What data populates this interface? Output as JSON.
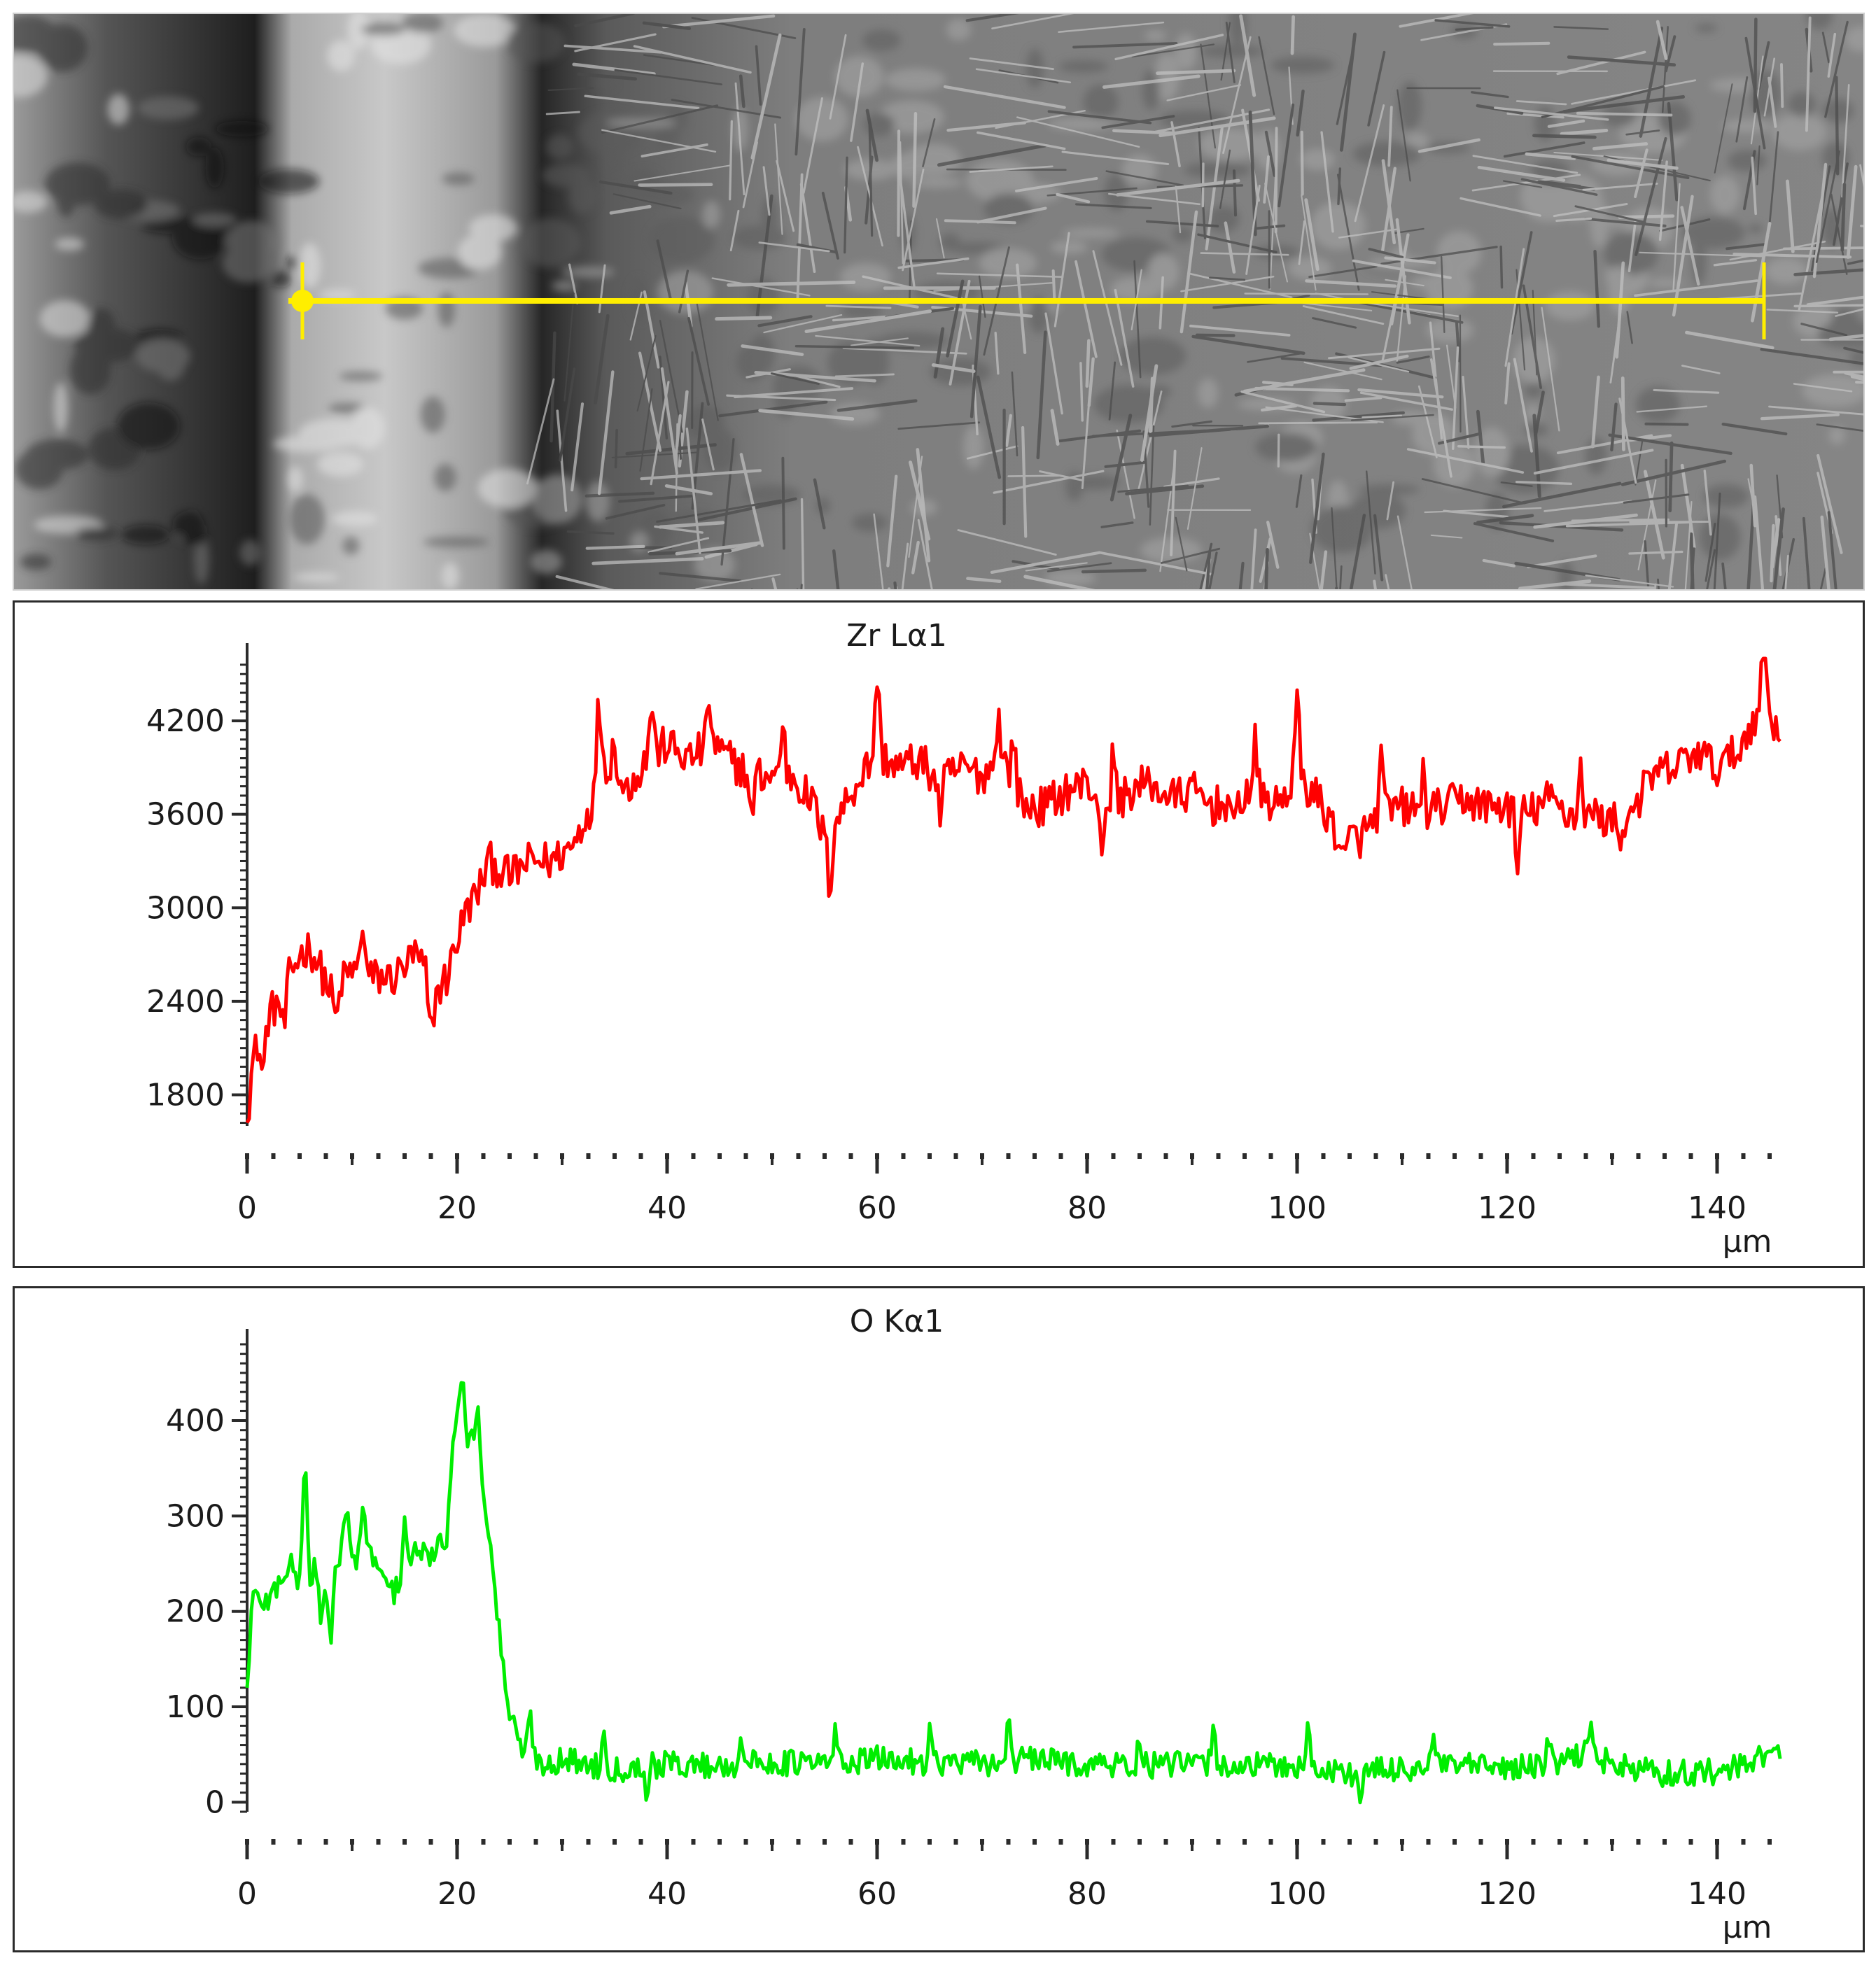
{
  "image": {
    "description_label": "SEM cross-section micrograph with EDS line scan",
    "line_scan_color": "#ffee00"
  },
  "chart_data": [
    {
      "type": "line",
      "title": "Zr Lα1",
      "xlabel": "μm",
      "ylabel": "",
      "color": "#ff0000",
      "xlim": [
        0,
        146
      ],
      "ylim": [
        1600,
        4600
      ],
      "xticks": [
        0,
        20,
        40,
        60,
        80,
        100,
        120,
        140
      ],
      "yticks": [
        1800,
        2400,
        3000,
        3600,
        4200
      ],
      "anchors": [
        [
          0,
          1620
        ],
        [
          0.5,
          2000
        ],
        [
          1.5,
          2250
        ],
        [
          3,
          2400
        ],
        [
          5,
          2700
        ],
        [
          6,
          2750
        ],
        [
          8,
          2450
        ],
        [
          10,
          2600
        ],
        [
          12,
          2550
        ],
        [
          14,
          2550
        ],
        [
          16,
          2700
        ],
        [
          18,
          2450
        ],
        [
          19,
          2550
        ],
        [
          20,
          2800
        ],
        [
          21,
          3000
        ],
        [
          22,
          3100
        ],
        [
          23,
          3300
        ],
        [
          25,
          3200
        ],
        [
          27,
          3300
        ],
        [
          29,
          3300
        ],
        [
          31,
          3400
        ],
        [
          33,
          3700
        ],
        [
          34,
          3950
        ],
        [
          36,
          3750
        ],
        [
          38,
          3950
        ],
        [
          40,
          4050
        ],
        [
          42,
          3950
        ],
        [
          44,
          4050
        ],
        [
          46,
          3950
        ],
        [
          48,
          3850
        ],
        [
          50,
          3850
        ],
        [
          52,
          3850
        ],
        [
          54,
          3650
        ],
        [
          55,
          3450
        ],
        [
          56,
          3550
        ],
        [
          58,
          3800
        ],
        [
          60,
          4000
        ],
        [
          62,
          3900
        ],
        [
          64,
          3950
        ],
        [
          66,
          3800
        ],
        [
          68,
          3900
        ],
        [
          70,
          3850
        ],
        [
          72,
          3950
        ],
        [
          74,
          3650
        ],
        [
          76,
          3650
        ],
        [
          78,
          3750
        ],
        [
          80,
          3800
        ],
        [
          82,
          3600
        ],
        [
          84,
          3750
        ],
        [
          86,
          3800
        ],
        [
          88,
          3700
        ],
        [
          90,
          3750
        ],
        [
          92,
          3650
        ],
        [
          94,
          3700
        ],
        [
          96,
          3750
        ],
        [
          98,
          3650
        ],
        [
          100,
          3850
        ],
        [
          102,
          3700
        ],
        [
          104,
          3450
        ],
        [
          106,
          3450
        ],
        [
          108,
          3600
        ],
        [
          110,
          3650
        ],
        [
          112,
          3600
        ],
        [
          114,
          3650
        ],
        [
          116,
          3700
        ],
        [
          118,
          3650
        ],
        [
          120,
          3650
        ],
        [
          122,
          3600
        ],
        [
          124,
          3700
        ],
        [
          126,
          3600
        ],
        [
          128,
          3600
        ],
        [
          130,
          3550
        ],
        [
          132,
          3650
        ],
        [
          134,
          3850
        ],
        [
          136,
          3900
        ],
        [
          138,
          4000
        ],
        [
          140,
          3900
        ],
        [
          142,
          4000
        ],
        [
          144,
          4300
        ],
        [
          146,
          4150
        ]
      ],
      "noise": 130,
      "spikes": [
        [
          1.5,
          -350
        ],
        [
          3.5,
          -300
        ],
        [
          8.5,
          -250
        ],
        [
          11,
          350
        ],
        [
          17.5,
          -380
        ],
        [
          33.5,
          550
        ],
        [
          35,
          250
        ],
        [
          38.5,
          380
        ],
        [
          44,
          300
        ],
        [
          48,
          -300
        ],
        [
          51,
          350
        ],
        [
          55.5,
          -400
        ],
        [
          60,
          500
        ],
        [
          66,
          -200
        ],
        [
          71.5,
          350
        ],
        [
          73,
          300
        ],
        [
          81.5,
          -300
        ],
        [
          82.5,
          400
        ],
        [
          94,
          -250
        ],
        [
          96,
          300
        ],
        [
          100,
          500
        ],
        [
          104.5,
          -200
        ],
        [
          108,
          350
        ],
        [
          112,
          250
        ],
        [
          121,
          -400
        ],
        [
          127,
          300
        ],
        [
          131,
          -200
        ],
        [
          144.5,
          500
        ]
      ]
    },
    {
      "type": "line",
      "title": "O Kα1",
      "xlabel": "μm",
      "ylabel": "",
      "color": "#00ee00",
      "xlim": [
        0,
        146
      ],
      "ylim": [
        -10,
        480
      ],
      "xticks": [
        0,
        20,
        40,
        60,
        80,
        100,
        120,
        140
      ],
      "yticks": [
        0,
        100,
        200,
        300,
        400
      ],
      "anchors": [
        [
          0,
          120
        ],
        [
          0.5,
          215
        ],
        [
          2,
          210
        ],
        [
          4,
          250
        ],
        [
          5,
          230
        ],
        [
          6,
          300
        ],
        [
          7,
          200
        ],
        [
          8,
          230
        ],
        [
          9,
          270
        ],
        [
          10,
          250
        ],
        [
          12,
          260
        ],
        [
          13,
          230
        ],
        [
          14,
          220
        ],
        [
          16,
          260
        ],
        [
          18,
          260
        ],
        [
          19,
          280
        ],
        [
          20,
          420
        ],
        [
          21,
          380
        ],
        [
          22,
          380
        ],
        [
          23,
          280
        ],
        [
          24,
          180
        ],
        [
          25,
          90
        ],
        [
          26,
          60
        ],
        [
          28,
          40
        ],
        [
          30,
          45
        ],
        [
          35,
          35
        ],
        [
          40,
          40
        ],
        [
          45,
          38
        ],
        [
          50,
          42
        ],
        [
          55,
          40
        ],
        [
          60,
          45
        ],
        [
          65,
          42
        ],
        [
          70,
          40
        ],
        [
          75,
          45
        ],
        [
          80,
          40
        ],
        [
          85,
          38
        ],
        [
          90,
          40
        ],
        [
          95,
          38
        ],
        [
          100,
          38
        ],
        [
          105,
          30
        ],
        [
          110,
          35
        ],
        [
          115,
          38
        ],
        [
          120,
          35
        ],
        [
          125,
          40
        ],
        [
          128,
          55
        ],
        [
          130,
          38
        ],
        [
          135,
          30
        ],
        [
          140,
          32
        ],
        [
          143,
          38
        ],
        [
          146,
          50
        ]
      ],
      "noise": 14,
      "spikes": [
        [
          5.5,
          110
        ],
        [
          6,
          -80
        ],
        [
          8,
          -70
        ],
        [
          9.5,
          60
        ],
        [
          11,
          60
        ],
        [
          15,
          60
        ],
        [
          20.5,
          60
        ],
        [
          22,
          40
        ],
        [
          27,
          40
        ],
        [
          34,
          35
        ],
        [
          38,
          -25
        ],
        [
          47,
          30
        ],
        [
          56,
          30
        ],
        [
          65,
          35
        ],
        [
          72.5,
          45
        ],
        [
          85,
          25
        ],
        [
          92,
          35
        ],
        [
          101,
          40
        ],
        [
          106,
          -25
        ],
        [
          113,
          30
        ],
        [
          124,
          25
        ],
        [
          128,
          25
        ],
        [
          144,
          20
        ]
      ]
    }
  ]
}
